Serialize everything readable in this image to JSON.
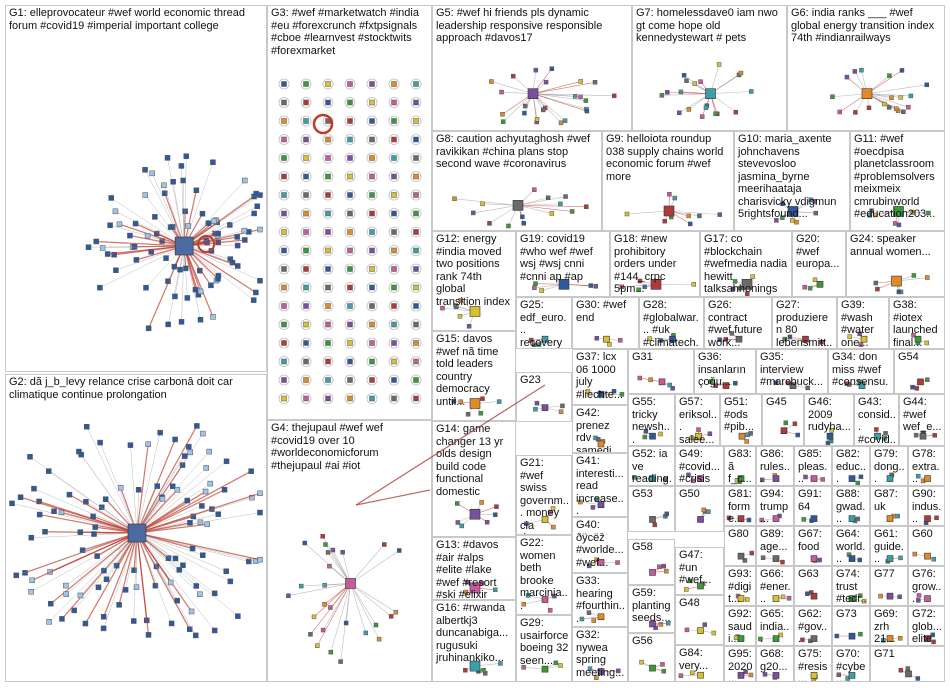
{
  "colors": {
    "background": "#ffffff",
    "panel_border": "#c8c8c8",
    "edge_red": "#c0392b",
    "edge_grey": "#a0a0a0",
    "node_blue": "#2e5a9c",
    "node_green": "#3a9a3a",
    "node_yellow": "#d8c030"
  },
  "groups": [
    {
      "id": "G1",
      "label": "G1: elleprovocateur #wef world economic thread forum #covid19 #imperial important college",
      "icon": "network-cluster-icon"
    },
    {
      "id": "G2",
      "label": "G2: dã j_b_levy relance crise carbonâ doit car climatique continue prolongation",
      "icon": "network-cluster-icon"
    },
    {
      "id": "G3",
      "label": "G3: #wef #marketwatch #india #eu #forexcrunch #fxtpsignals #cboe #learnvest #stocktwits #forexmarket",
      "icon": "network-cluster-icon"
    },
    {
      "id": "G4",
      "label": "G4: thejupaul #wef wef #covid19 over 10 #worldeconomicforum #thejupaul #ai #iot",
      "icon": "network-cluster-icon"
    },
    {
      "id": "G5",
      "label": "G5: #wef hi friends pls dynamic leadership responsive responsible approach #davos17",
      "icon": "network-cluster-icon"
    },
    {
      "id": "G6",
      "label": "G6: india ranks ___ #wef global energy transition index 74th #indianrailways",
      "icon": "network-cluster-icon"
    },
    {
      "id": "G7",
      "label": "G7: homelessdave0 iam nwo gt come hope old kennedystewart # pets",
      "icon": "network-cluster-icon"
    },
    {
      "id": "G8",
      "label": "G8: caution achyutaghosh #wef ravikikan #china plans stop second wave #coronavirus",
      "icon": "network-cluster-icon"
    },
    {
      "id": "G9",
      "label": "G9: helloiota roundup 038 supply chains world economic forum #wef more",
      "icon": "network-cluster-icon"
    },
    {
      "id": "G10",
      "label": "G10: maria_axente johnchavens stevevosloo jasmina_byrne meerihaataja charisvicky vdigmun 5rightsfound...",
      "icon": "network-cluster-icon"
    },
    {
      "id": "G11",
      "label": "G11: #wef #oecdpisa planetclassroom #problemsolvers meixmeix cmrubinworld #education203...",
      "icon": "network-cluster-icon"
    },
    {
      "id": "G12",
      "label": "G12: energy #india moved two positions rank 74th global transition index",
      "icon": "network-cluster-icon"
    },
    {
      "id": "G13",
      "label": "G13: #davos #air #alps #elite #lake #wef #resort #ski #elixir #scenic",
      "icon": "network-cluster-icon"
    },
    {
      "id": "G14",
      "label": "G14: game changer 13 yr olds design build code functional domestic",
      "icon": "network-cluster-icon"
    },
    {
      "id": "G15",
      "label": "G15: davos #wef nã time told leaders country democracy until...",
      "icon": "network-cluster-icon"
    },
    {
      "id": "G16",
      "label": "G16: #rwanda albertkj3 duncanabiga... rugusuki jruhinankiko...",
      "icon": "network-cluster-icon"
    },
    {
      "id": "G17",
      "label": "G17: co #blockchain #wefmedia nadia hewitt talksahhonings #supplychains...",
      "icon": "network-cluster-icon"
    },
    {
      "id": "G18",
      "label": "G18: #new prohibitory orders under #144_crpc 5pm...",
      "icon": "network-cluster-icon"
    },
    {
      "id": "G19",
      "label": "G19: covid19 #who wef #wef wsj #wsj cnni #cnni ap #ap",
      "icon": "network-cluster-icon"
    },
    {
      "id": "G20",
      "label": "G20: #wef europa...",
      "icon": "network-cluster-icon"
    },
    {
      "id": "G21",
      "label": "G21: #wef swiss governm... money cia rivers...",
      "icon": "network-cluster-icon"
    },
    {
      "id": "G22",
      "label": "G22: women beth brooke marcinia...",
      "icon": "network-cluster-icon"
    },
    {
      "id": "G23",
      "label": "G23",
      "icon": "network-cluster-icon"
    },
    {
      "id": "G24",
      "label": "G24: speaker annual women...",
      "icon": "network-cluster-icon"
    },
    {
      "id": "G25",
      "label": "G25: edf_euro... recovery #carbonf... #renewa...",
      "icon": "network-cluster-icon"
    },
    {
      "id": "G26",
      "label": "G26: contract #wef future work...",
      "icon": "network-cluster-icon"
    },
    {
      "id": "G27",
      "label": "G27: produzieren 80 lebensmitt...",
      "icon": "network-cluster-icon"
    },
    {
      "id": "G28",
      "label": "G28: #globalwar... #uk #climatech...",
      "icon": "network-cluster-icon"
    },
    {
      "id": "G29",
      "label": "G29: usairforce boeing 32 seen...",
      "icon": "network-cluster-icon"
    },
    {
      "id": "G30",
      "label": "G30: #wef end",
      "icon": "network-cluster-icon"
    },
    {
      "id": "G31",
      "label": "G31",
      "icon": "network-cluster-icon"
    },
    {
      "id": "G32",
      "label": "G32: nywea spring meeting...",
      "icon": "network-cluster-icon"
    },
    {
      "id": "G33",
      "label": "G33: hearing #fourthin...",
      "icon": "network-cluster-icon"
    },
    {
      "id": "G34",
      "label": "G34: don miss #wef #consensu...",
      "icon": "network-cluster-icon"
    },
    {
      "id": "G35",
      "label": "G35: interview #marcbuck...",
      "icon": "network-cluster-icon"
    },
    {
      "id": "G36",
      "label": "G36: insanların çoğu...",
      "icon": "network-cluster-icon"
    },
    {
      "id": "G37",
      "label": "G37: lcx 06 1000 july #liechte...",
      "icon": "network-cluster-icon"
    },
    {
      "id": "G38",
      "label": "G38: #iotex launched final...",
      "icon": "network-cluster-icon"
    },
    {
      "id": "G39",
      "label": "G39: #wash #water one...",
      "icon": "network-cluster-icon"
    },
    {
      "id": "G40",
      "label": "G40: ðÿcëž #worlde... #wef...",
      "icon": "network-cluster-icon"
    },
    {
      "id": "G41",
      "label": "G41: interesti... read increase...",
      "icon": "network-cluster-icon"
    },
    {
      "id": "G42",
      "label": "G42: prenez rdv samedi...",
      "icon": "network-cluster-icon"
    },
    {
      "id": "G43",
      "label": "G43: consid... #covid...",
      "icon": "network-cluster-icon"
    },
    {
      "id": "G44",
      "label": "G44: #wef wef_e...",
      "icon": "network-cluster-icon"
    },
    {
      "id": "G45",
      "label": "G45",
      "icon": "network-cluster-icon"
    },
    {
      "id": "G46",
      "label": "G46: 2009 rudyha...",
      "icon": "network-cluster-icon"
    },
    {
      "id": "G47",
      "label": "G47: #un #wef...",
      "icon": "network-cluster-icon"
    },
    {
      "id": "G48",
      "label": "G48",
      "icon": "network-cluster-icon"
    },
    {
      "id": "G49",
      "label": "G49: #covid... #crisis",
      "icon": "network-cluster-icon"
    },
    {
      "id": "G50",
      "label": "G50",
      "icon": "network-cluster-icon"
    },
    {
      "id": "G51",
      "label": "G51: #ods #pib...",
      "icon": "network-cluster-icon"
    },
    {
      "id": "G52",
      "label": "G52: ia ve reading...",
      "icon": "network-cluster-icon"
    },
    {
      "id": "G53",
      "label": "G53",
      "icon": "network-cluster-icon"
    },
    {
      "id": "G54",
      "label": "G54",
      "icon": "network-cluster-icon"
    },
    {
      "id": "G55",
      "label": "G55: tricky newsh...",
      "icon": "network-cluster-icon"
    },
    {
      "id": "G56",
      "label": "G56",
      "icon": "network-cluster-icon"
    },
    {
      "id": "G57",
      "label": "G57: eriksol... saleе...",
      "icon": "network-cluster-icon"
    },
    {
      "id": "G58",
      "label": "G58",
      "icon": "network-cluster-icon"
    },
    {
      "id": "G59",
      "label": "G59: planting seeds...",
      "icon": "network-cluster-icon"
    },
    {
      "id": "G60",
      "label": "G60",
      "icon": "network-cluster-icon"
    },
    {
      "id": "G61",
      "label": "G61: guide...",
      "icon": "network-cluster-icon"
    },
    {
      "id": "G62",
      "label": "G62: #gov...",
      "icon": "network-cluster-icon"
    },
    {
      "id": "G63",
      "label": "G63",
      "icon": "network-cluster-icon"
    },
    {
      "id": "G64",
      "label": "G64: world...",
      "icon": "network-cluster-icon"
    },
    {
      "id": "G65",
      "label": "G65: india...",
      "icon": "network-cluster-icon"
    },
    {
      "id": "G66",
      "label": "G66: #ener...",
      "icon": "network-cluster-icon"
    },
    {
      "id": "G67",
      "label": "G67: food",
      "icon": "network-cluster-icon"
    },
    {
      "id": "G68",
      "label": "G68: g20...",
      "icon": "network-cluster-icon"
    },
    {
      "id": "G69",
      "label": "G69: zrh 21...",
      "icon": "network-cluster-icon"
    },
    {
      "id": "G70",
      "label": "G70: #cybe...",
      "icon": "network-cluster-icon"
    },
    {
      "id": "G71",
      "label": "G71",
      "icon": "network-cluster-icon"
    },
    {
      "id": "G72",
      "label": "G72: glob... elite",
      "icon": "network-cluster-icon"
    },
    {
      "id": "G73",
      "label": "G73",
      "icon": "network-cluster-icon"
    },
    {
      "id": "G74",
      "label": "G74: trust #tedr...",
      "icon": "network-cluster-icon"
    },
    {
      "id": "G75",
      "label": "G75: #resis...",
      "icon": "network-cluster-icon"
    },
    {
      "id": "G76",
      "label": "G76: grow...",
      "icon": "network-cluster-icon"
    },
    {
      "id": "G77",
      "label": "G77",
      "icon": "network-cluster-icon"
    },
    {
      "id": "G78",
      "label": "G78: extra...",
      "icon": "network-cluster-icon"
    },
    {
      "id": "G79",
      "label": "G79: dong...",
      "icon": "network-cluster-icon"
    },
    {
      "id": "G80",
      "label": "G80",
      "icon": "network-cluster-icon"
    },
    {
      "id": "G81",
      "label": "G81: forme...",
      "icon": "network-cluster-icon"
    },
    {
      "id": "G82",
      "label": "G82: educ...",
      "icon": "network-cluster-icon"
    },
    {
      "id": "G83",
      "label": "G83: ã f_c...",
      "icon": "network-cluster-icon"
    },
    {
      "id": "G84",
      "label": "G84: very...",
      "icon": "network-cluster-icon"
    },
    {
      "id": "G85",
      "label": "G85: pleas...",
      "icon": "network-cluster-icon"
    },
    {
      "id": "G86",
      "label": "G86: rules...",
      "icon": "network-cluster-icon"
    },
    {
      "id": "G87",
      "label": "G87: uk",
      "icon": "network-cluster-icon"
    },
    {
      "id": "G88",
      "label": "G88: gwad...",
      "icon": "network-cluster-icon"
    },
    {
      "id": "G89",
      "label": "G89: age...",
      "icon": "network-cluster-icon"
    },
    {
      "id": "G90",
      "label": "G90: indus...",
      "icon": "network-cluster-icon"
    },
    {
      "id": "G91",
      "label": "G91: 64",
      "icon": "network-cluster-icon"
    },
    {
      "id": "G92",
      "label": "G92: saudi...",
      "icon": "network-cluster-icon"
    },
    {
      "id": "G93",
      "label": "G93: #digit...",
      "icon": "network-cluster-icon"
    },
    {
      "id": "G94",
      "label": "G94: trump...",
      "icon": "network-cluster-icon"
    },
    {
      "id": "G95",
      "label": "G95: 2020...",
      "icon": "network-cluster-icon"
    }
  ]
}
